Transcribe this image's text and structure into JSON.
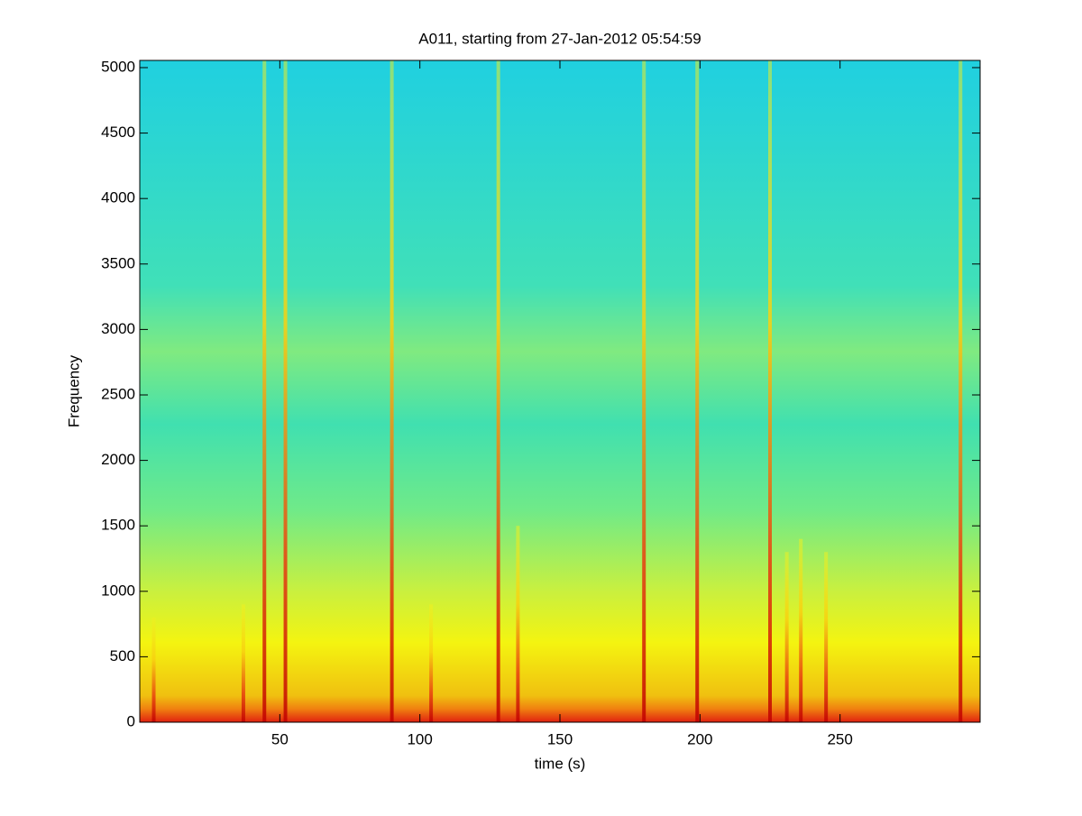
{
  "chart_data": {
    "type": "spectrogram",
    "title": "A011, starting from 27-Jan-2012 05:54:59",
    "xlabel": "time (s)",
    "ylabel": "Frequency",
    "xlim": [
      0,
      300
    ],
    "ylim": [
      0,
      5055
    ],
    "xticks": [
      50,
      100,
      150,
      200,
      250
    ],
    "yticks": [
      0,
      500,
      1000,
      1500,
      2000,
      2500,
      3000,
      3500,
      4000,
      4500,
      5000
    ],
    "x": [
      5,
      37,
      44.5,
      52,
      90,
      104,
      128,
      135,
      180,
      199,
      225,
      231,
      236,
      245,
      293
    ],
    "values": [
      800,
      900,
      5055,
      5055,
      5055,
      900,
      5055,
      1500,
      5055,
      5055,
      5055,
      1300,
      1400,
      1300,
      5055
    ]
  }
}
